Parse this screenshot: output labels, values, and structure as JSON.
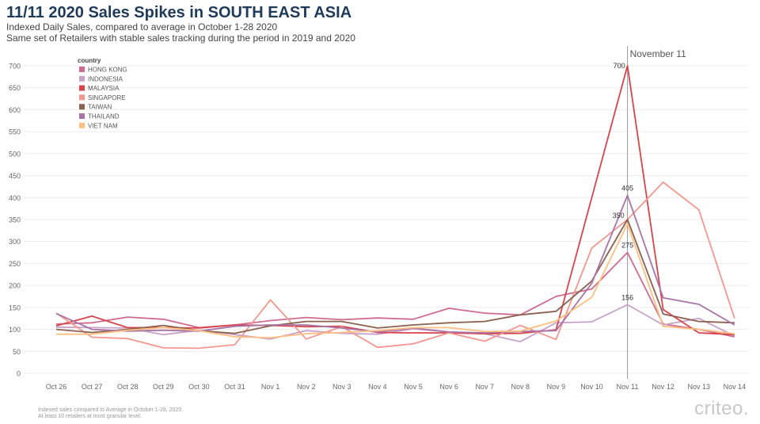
{
  "header": {
    "title": "11/11 2020 Sales Spikes in SOUTH EAST ASIA",
    "subtitle1": "Indexed Daily Sales, compared to average in October 1-28 2020",
    "subtitle2": "Same set of Retailers with stable sales tracking during the period in 2019 and 2020"
  },
  "footer": {
    "note1": "Indexed sales compared to Average in October 1-28, 2020.",
    "note2": "At least 10 retailers at most granular level.",
    "brand": "criteo."
  },
  "chart_data": {
    "type": "line",
    "title": "11/11 2020 Sales Spikes in SOUTH EAST ASIA",
    "legend_title": "country",
    "legend_position": "top-left",
    "grid": true,
    "ylim": [
      0,
      700
    ],
    "yticks": [
      0,
      50,
      100,
      150,
      200,
      250,
      300,
      350,
      400,
      450,
      500,
      550,
      600,
      650,
      700
    ],
    "categories": [
      "Oct 26",
      "Oct 27",
      "Oct 28",
      "Oct 29",
      "Oct 30",
      "Oct 31",
      "Nov 1",
      "Nov 2",
      "Nov 3",
      "Nov 4",
      "Nov 5",
      "Nov 6",
      "Nov 7",
      "Nov 8",
      "Nov 9",
      "Nov 10",
      "Nov 11",
      "Nov 12",
      "Nov 13",
      "Nov 14"
    ],
    "reference_line": {
      "category": "Nov 11",
      "label": "November 11"
    },
    "series": [
      {
        "name": "HONG KONG",
        "color": "#d06b8e",
        "values": [
          112,
          115,
          128,
          123,
          104,
          110,
          120,
          127,
          122,
          126,
          123,
          148,
          137,
          133,
          175,
          192,
          275,
          112,
          100,
          83
        ]
      },
      {
        "name": "INDONESIA",
        "color": "#c9a2c9",
        "values": [
          105,
          104,
          103,
          88,
          98,
          88,
          78,
          97,
          91,
          89,
          101,
          94,
          90,
          72,
          115,
          117,
          156,
          110,
          125,
          85
        ]
      },
      {
        "name": "MALAYSIA",
        "color": "#d9434a",
        "values": [
          108,
          130,
          104,
          104,
          103,
          110,
          109,
          106,
          107,
          93,
          92,
          92,
          90,
          91,
          99,
          400,
          700,
          145,
          92,
          88
        ]
      },
      {
        "name": "SINGAPORE",
        "color": "#f4978e",
        "values": [
          137,
          82,
          79,
          58,
          57,
          65,
          167,
          78,
          106,
          59,
          67,
          92,
          73,
          109,
          77,
          285,
          350,
          435,
          372,
          125
        ]
      },
      {
        "name": "TAIWAN",
        "color": "#8b6250",
        "values": [
          100,
          93,
          100,
          109,
          97,
          91,
          108,
          118,
          118,
          103,
          110,
          115,
          118,
          133,
          141,
          210,
          350,
          135,
          118,
          115
        ]
      },
      {
        "name": "THAILAND",
        "color": "#a874a8",
        "values": [
          136,
          100,
          96,
          98,
          96,
          107,
          110,
          110,
          103,
          94,
          103,
          94,
          92,
          95,
          97,
          205,
          405,
          172,
          157,
          110
        ]
      },
      {
        "name": "VIET NAM",
        "color": "#ffbf80",
        "values": [
          89,
          89,
          98,
          104,
          97,
          83,
          81,
          90,
          93,
          97,
          104,
          104,
          95,
          96,
          119,
          173,
          340,
          107,
          100,
          90
        ]
      }
    ],
    "data_labels": [
      {
        "series": "MALAYSIA",
        "category": "Nov 11",
        "value": 700,
        "text": "700"
      },
      {
        "series": "THAILAND",
        "category": "Nov 11",
        "value": 405,
        "text": "405"
      },
      {
        "series": "TAIWAN",
        "category": "Nov 11",
        "value": 350,
        "text": "350"
      },
      {
        "series": "HONG KONG",
        "category": "Nov 11",
        "value": 275,
        "text": "275"
      },
      {
        "series": "INDONESIA",
        "category": "Nov 11",
        "value": 156,
        "text": "156"
      }
    ]
  }
}
